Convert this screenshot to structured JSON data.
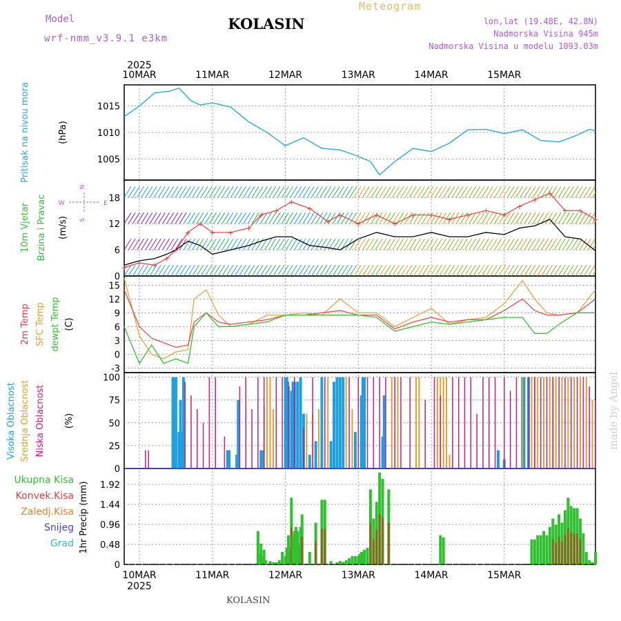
{
  "header": {
    "model_label": "Model",
    "model_name": "wrf-nmm_v3.9.1 e3km",
    "title": "KOLASIN",
    "meteogram": "Meteogram",
    "lonlat": "lon,lat (19.48E, 42.8N)",
    "elevation": "Nadmorska Visina 945m",
    "model_elevation": "Nadmorska Visina u modelu 1093.03m"
  },
  "footer": {
    "location": "KOLASIN",
    "credit": "made by Angel"
  },
  "time_axis": {
    "year": "2025",
    "days": [
      "10MAR",
      "11MAR",
      "12MAR",
      "13MAR",
      "14MAR",
      "15MAR"
    ],
    "start_hour_offset": -5,
    "end_hour": 150
  },
  "colors": {
    "pressure": "#2aa8e0",
    "wind_speed": "#000000",
    "gust": "#e04040",
    "t2m": "#e04040",
    "sfc_temp": "#e0a030",
    "dewpt": "#30c030",
    "cloud_high": "#1ea0e0",
    "cloud_mid": "#e0a030",
    "cloud_low": "#c02080",
    "precip_total": "#30c030",
    "precip_conv": "#e04040",
    "precip_frozen": "#e08030",
    "snow": "#4040e0",
    "hail": "#30c0c0",
    "compass": "#b05cd0"
  },
  "chart_data": [
    {
      "type": "line",
      "title": "Pritisak na nivou mora",
      "ylabel": "(hPa)",
      "ylim": [
        1001,
        1019
      ],
      "ticks": [
        1005,
        1010,
        1015
      ],
      "x": [
        -5,
        0,
        5,
        10,
        13,
        17,
        20,
        24,
        30,
        36,
        42,
        48,
        54,
        60,
        66,
        72,
        76,
        79,
        84,
        90,
        96,
        102,
        108,
        114,
        120,
        126,
        132,
        138,
        144,
        148,
        150
      ],
      "series": [
        {
          "name": "MSLP",
          "values": [
            1013,
            1015,
            1017.5,
            1017.8,
            1018.4,
            1016,
            1015.2,
            1015.6,
            1014.8,
            1012,
            1010,
            1007.5,
            1009,
            1007,
            1006.7,
            1005.5,
            1004.5,
            1002,
            1004.5,
            1007,
            1006.4,
            1008,
            1010.5,
            1010.6,
            1009.8,
            1010.5,
            1008.5,
            1008.2,
            1009.5,
            1010.6,
            1010.3
          ]
        }
      ]
    },
    {
      "type": "line",
      "title": "10m Vjetar Brzina i Pravac",
      "ylabel": "(m/s)",
      "ylim": [
        0,
        22
      ],
      "ticks": [
        0,
        6,
        12,
        18
      ],
      "compass": {
        "n": "N",
        "w": "W",
        "e": "E",
        "s": "S"
      },
      "x": [
        -5,
        0,
        5,
        9,
        12,
        16,
        20,
        24,
        30,
        36,
        40,
        45,
        50,
        56,
        62,
        66,
        72,
        78,
        84,
        90,
        96,
        102,
        108,
        114,
        120,
        125,
        130,
        135,
        140,
        145,
        150
      ],
      "series": [
        {
          "name": "speed",
          "values": [
            2.5,
            3.5,
            4,
            5,
            6,
            8,
            7,
            5,
            6,
            7,
            8,
            9,
            9,
            7,
            6.5,
            6,
            8.5,
            10,
            9,
            9,
            10,
            9,
            9,
            10,
            9.5,
            11,
            11.5,
            13,
            9,
            8.5,
            5.8
          ]
        },
        {
          "name": "gust",
          "values": [
            2,
            3,
            2.5,
            4,
            6,
            10,
            12,
            10,
            10,
            11,
            14,
            15,
            17,
            15.5,
            12.5,
            14,
            12,
            14,
            12,
            14,
            14,
            13,
            14,
            15,
            14,
            16,
            17.5,
            19,
            15,
            15,
            13
          ]
        }
      ]
    },
    {
      "type": "line",
      "title": "2m Temp / SFC Temp / dewpt Temp",
      "ylabel": "(C)",
      "ylim": [
        -4,
        17
      ],
      "ticks": [
        -3,
        0,
        3,
        6,
        9,
        12,
        15
      ],
      "x": [
        -5,
        0,
        4,
        8,
        12,
        16,
        18,
        22,
        26,
        30,
        36,
        42,
        48,
        54,
        60,
        66,
        72,
        78,
        84,
        90,
        96,
        102,
        108,
        114,
        120,
        126,
        130,
        134,
        138,
        144,
        150
      ],
      "series": [
        {
          "name": "2m Temp",
          "values": [
            14,
            6,
            3.5,
            2.5,
            1.5,
            2,
            7,
            9,
            7,
            6.5,
            7,
            7.5,
            8.5,
            8.5,
            9,
            9.5,
            8.5,
            8.5,
            5.5,
            7,
            8,
            7,
            7.5,
            7.5,
            9.5,
            12,
            9.5,
            8.5,
            8.5,
            9,
            12
          ]
        },
        {
          "name": "SFC Temp",
          "values": [
            16.5,
            4,
            0,
            -1,
            0.5,
            1,
            12,
            14,
            8.5,
            6,
            6.5,
            8.5,
            8.5,
            9,
            8.5,
            12,
            9,
            9,
            6,
            8,
            10,
            6.5,
            7.5,
            8,
            11,
            16,
            12,
            9,
            8.5,
            9,
            14
          ]
        },
        {
          "name": "dewpt",
          "values": [
            6,
            -2,
            2,
            -2,
            -1,
            -2,
            6,
            9,
            6,
            6,
            6.5,
            7,
            8.5,
            8.5,
            8.5,
            8.5,
            8.5,
            8,
            5,
            6,
            7,
            6.5,
            7,
            7.5,
            8,
            8,
            4.5,
            4.5,
            6.5,
            9,
            9
          ]
        }
      ]
    },
    {
      "type": "bar",
      "title": "Visoka / Srednja / Niska Oblacnost",
      "ylabel": "(%)",
      "ylim": [
        0,
        105
      ],
      "ticks": [
        0,
        25,
        50,
        75,
        100
      ],
      "series": [
        {
          "name": "high",
          "x": [
            11,
            11.5,
            12,
            13,
            13.5,
            14,
            14.5,
            29,
            29.5,
            32,
            32.5,
            40,
            40.5,
            48,
            48.5,
            49,
            50,
            50.5,
            51,
            52,
            53,
            54,
            56,
            58,
            60,
            63,
            64,
            65,
            66,
            67,
            71,
            73,
            73.5,
            74,
            80,
            80.5,
            118,
            120,
            126,
            126.5,
            128
          ],
          "values": [
            100,
            100,
            100,
            40,
            75,
            40,
            100,
            20,
            20,
            15,
            75,
            20,
            20,
            100,
            100,
            90,
            85,
            95,
            95,
            95,
            100,
            60,
            15,
            30,
            100,
            30,
            95,
            100,
            100,
            100,
            40,
            80,
            100,
            100,
            35,
            80,
            20,
            10,
            100,
            100,
            100
          ]
        },
        {
          "name": "mid",
          "x": [
            41,
            42,
            43,
            44,
            55,
            57,
            59,
            62,
            68,
            70,
            83,
            85,
            91,
            92,
            98,
            99,
            100,
            101,
            102,
            126,
            129,
            130,
            131,
            133,
            135,
            136,
            137,
            139,
            141,
            143,
            145,
            147,
            149
          ],
          "values": [
            70,
            100,
            100,
            65,
            60,
            60,
            65,
            100,
            100,
            65,
            100,
            100,
            100,
            100,
            100,
            100,
            100,
            100,
            15,
            100,
            100,
            100,
            100,
            100,
            100,
            100,
            100,
            100,
            100,
            100,
            100,
            100,
            75
          ]
        },
        {
          "name": "low",
          "x": [
            2,
            3,
            15,
            17,
            19,
            21,
            23,
            25,
            28,
            33,
            35,
            37,
            39,
            41,
            45,
            47,
            49,
            51,
            54,
            57,
            61,
            69,
            72,
            75,
            77,
            79,
            81,
            84,
            86,
            89,
            94,
            97,
            99,
            103,
            105,
            107,
            109,
            111,
            113,
            115,
            117,
            120,
            122,
            124,
            128,
            130,
            132,
            134,
            136,
            138,
            140,
            142,
            144,
            146,
            148,
            150
          ],
          "values": [
            20,
            20,
            95,
            80,
            65,
            50,
            100,
            100,
            35,
            90,
            100,
            65,
            100,
            100,
            100,
            100,
            95,
            100,
            45,
            100,
            100,
            100,
            100,
            100,
            100,
            100,
            100,
            100,
            100,
            100,
            75,
            100,
            80,
            100,
            100,
            100,
            100,
            60,
            100,
            100,
            100,
            100,
            85,
            100,
            100,
            100,
            100,
            100,
            100,
            100,
            100,
            100,
            100,
            100,
            90,
            75
          ]
        }
      ]
    },
    {
      "type": "bar",
      "title": "1hr Precip",
      "ylabel": "1hr Precip (mm)",
      "ylim": [
        0,
        2.3
      ],
      "ticks": [
        0,
        0.48,
        0.96,
        1.44,
        1.92
      ],
      "tick_labels": [
        "0",
        "0.48",
        "0.96",
        "1.44",
        "1.92"
      ],
      "legend": [
        "Ukupna Kisa",
        "Konvek.Kisa",
        "Zaledj.Kisa",
        "Snijeg",
        "Grad"
      ],
      "series": [
        {
          "name": "Ukupna Kisa",
          "x": [
            39,
            39.5,
            40,
            40.5,
            41,
            41.5,
            43,
            44,
            45,
            46,
            47,
            48,
            48.5,
            49,
            49.5,
            50,
            50.5,
            51,
            51.5,
            52,
            52.5,
            53,
            53.5,
            56,
            58,
            60,
            61,
            63,
            65,
            66,
            67,
            68,
            69,
            70,
            71,
            72,
            72.5,
            73,
            73.5,
            74,
            75,
            76,
            77,
            78,
            79,
            80,
            82,
            99,
            100,
            129,
            130,
            131,
            132,
            133,
            134,
            135,
            136,
            137,
            138,
            139,
            140,
            141,
            142,
            143,
            144,
            145,
            146,
            147,
            148,
            149,
            150
          ],
          "values": [
            0.8,
            0.25,
            0.5,
            0.2,
            0.35,
            0.1,
            0.08,
            0.05,
            0.05,
            0.1,
            0.3,
            0.2,
            0.4,
            0.7,
            0.4,
            1.6,
            0.65,
            0.8,
            0.9,
            0.8,
            0.5,
            0.9,
            1.2,
            0.3,
            1.0,
            1.55,
            1.55,
            0.08,
            0.05,
            0.08,
            0.06,
            0.1,
            0.15,
            0.2,
            0.2,
            0.2,
            0.25,
            0.3,
            0.3,
            0.35,
            0.4,
            1.8,
            1.1,
            1.5,
            2.2,
            2.05,
            1.8,
            0.7,
            0.65,
            0.6,
            0.6,
            0.7,
            0.7,
            0.8,
            0.7,
            0.9,
            1.1,
            0.95,
            1.2,
            1.0,
            1.3,
            1.6,
            1.4,
            1.35,
            1.35,
            1.1,
            0.75,
            0.3,
            0.1,
            0.05,
            0.3
          ]
        }
      ]
    }
  ]
}
